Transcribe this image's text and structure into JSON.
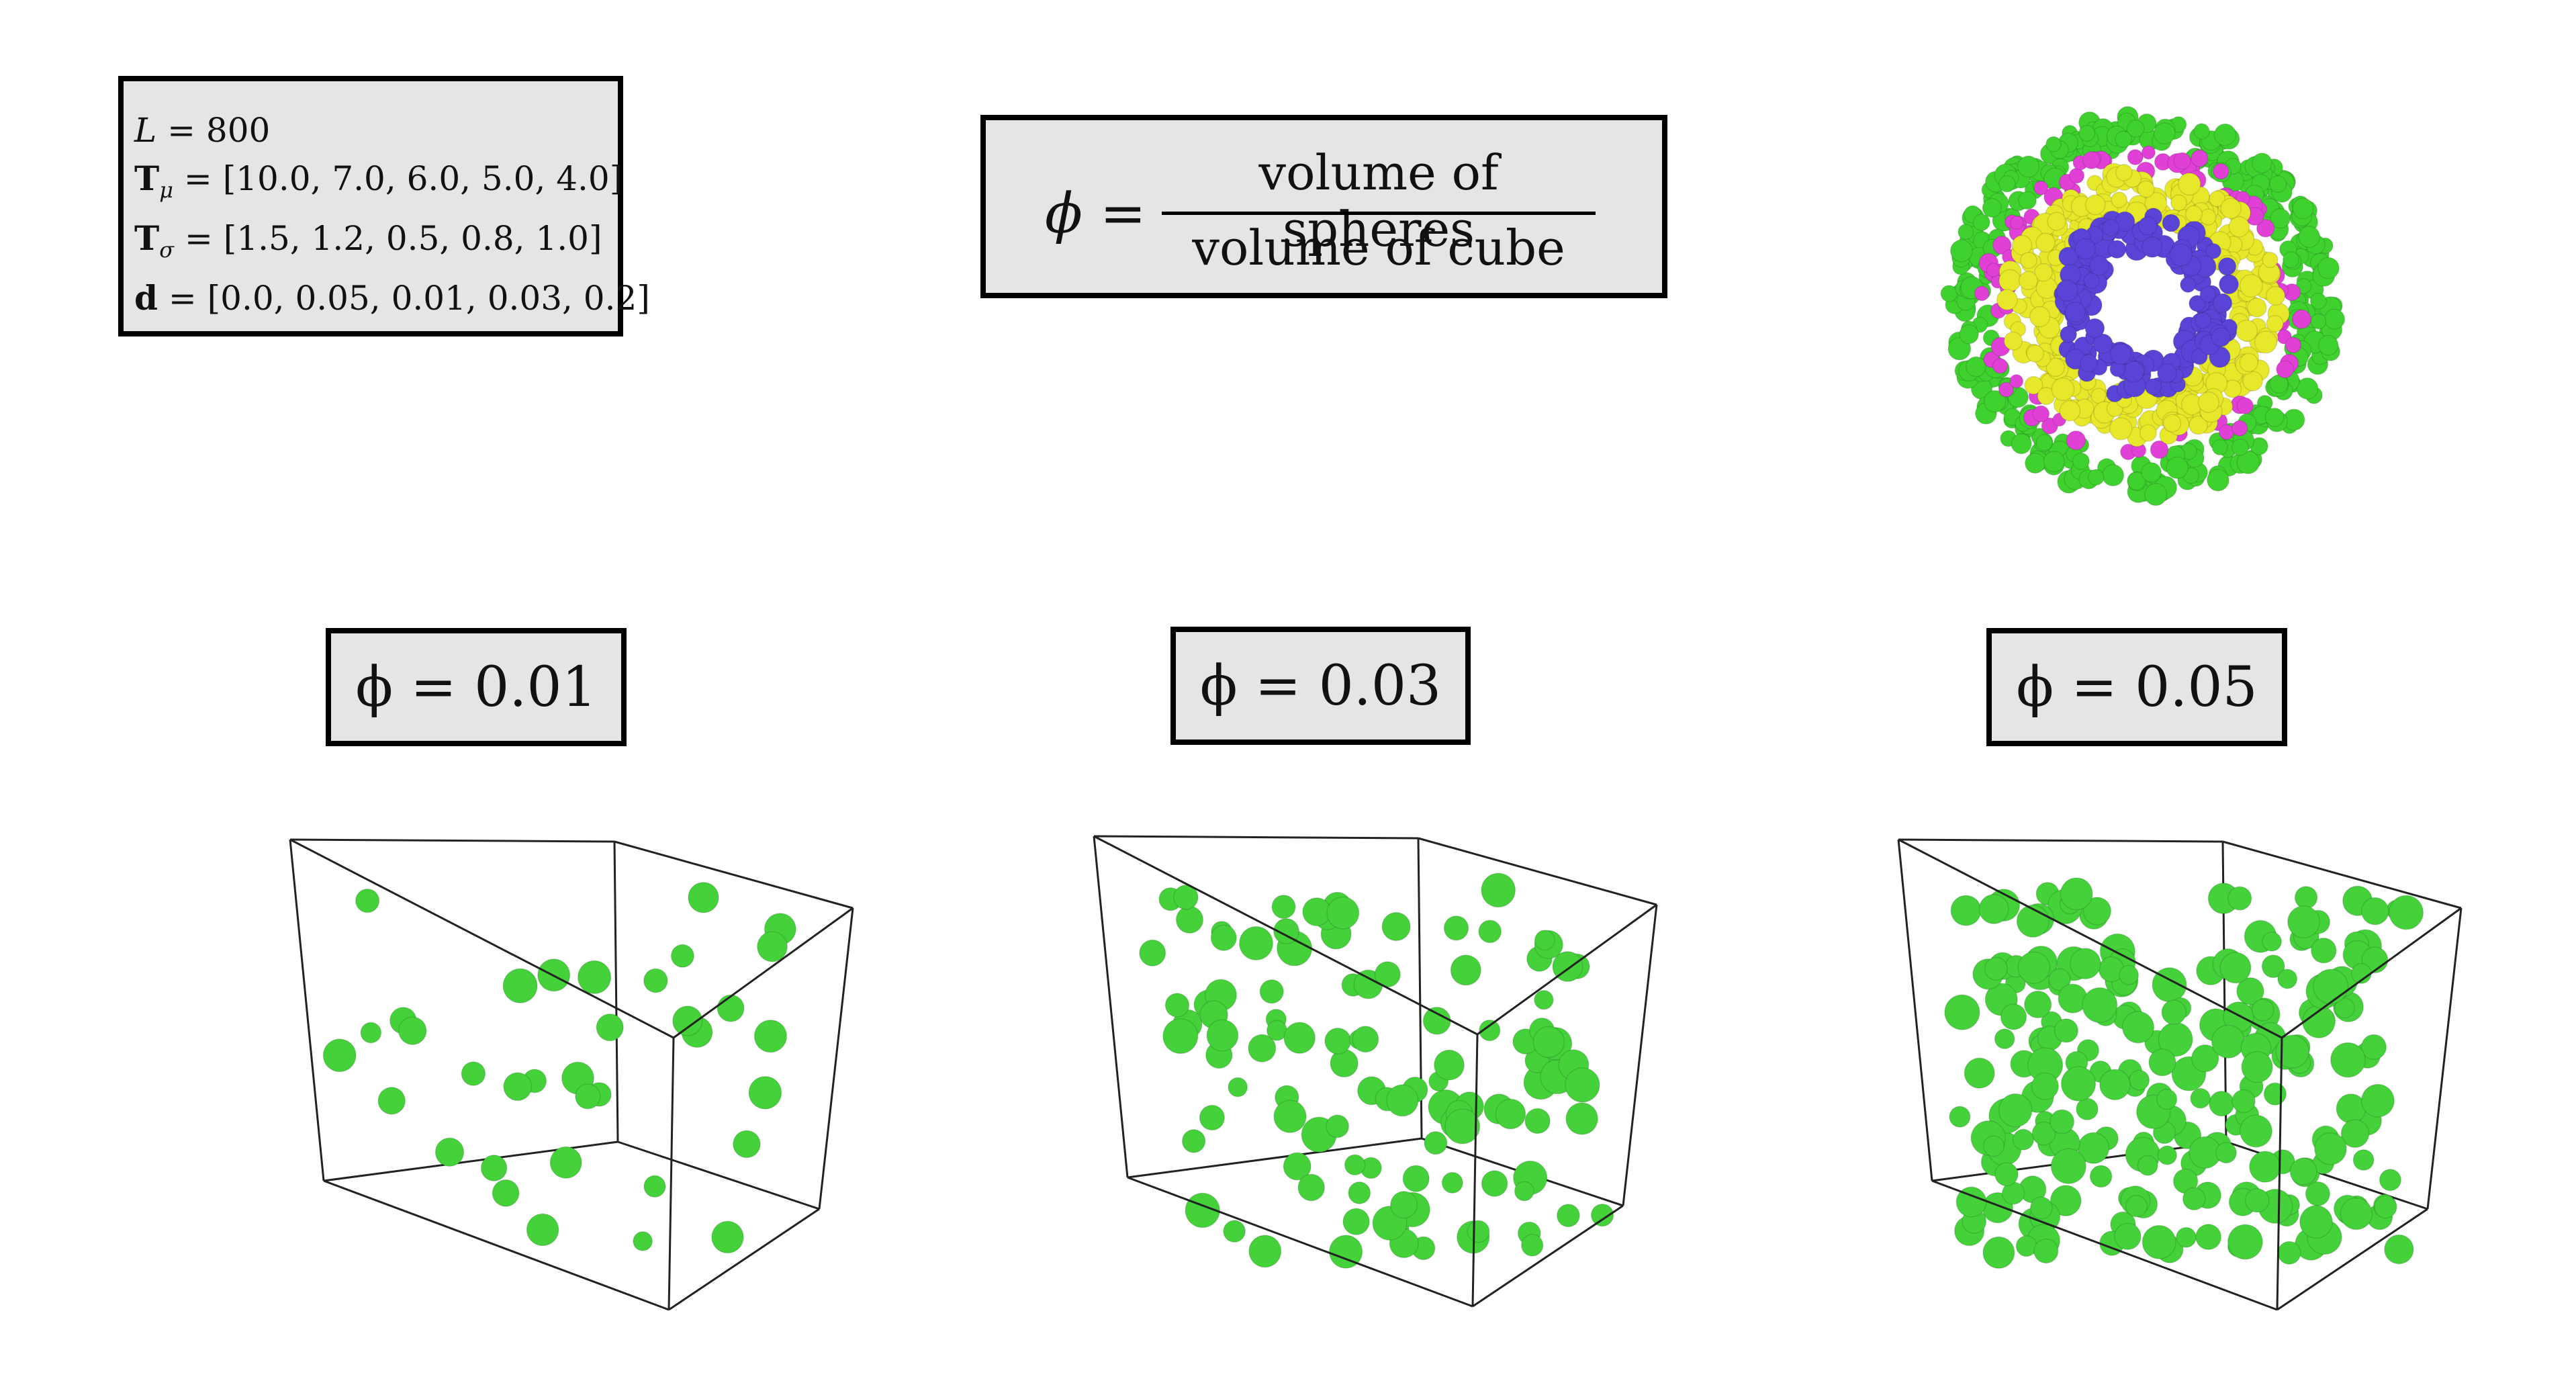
{
  "params": {
    "l_sym": "L",
    "l_rest": " = 800",
    "tmu_sym": "T",
    "tmu_sub": "μ",
    "tmu_rest": " = [10.0, 7.0, 6.0, 5.0, 4.0]",
    "tsig_sym": "T",
    "tsig_sub": "σ",
    "tsig_rest": " = [1.5, 1.2, 0.5, 0.8, 1.0]",
    "d_sym": "d",
    "d_rest": " = [0.0, 0.05, 0.01, 0.03, 0.2]"
  },
  "formula": {
    "lhs": "ϕ =",
    "numerator": "volume of spheres",
    "denominator": "volume of cube"
  },
  "panels": [
    {
      "label": "ϕ = 0.01"
    },
    {
      "label": "ϕ = 0.03"
    },
    {
      "label": "ϕ = 0.05"
    }
  ],
  "colors": {
    "sphere": "#44d13a",
    "ring_outer": "#3fd22f",
    "ring_magenta": "#e040d6",
    "ring_yellow": "#e8e82a",
    "ring_inner": "#5a44d8"
  }
}
